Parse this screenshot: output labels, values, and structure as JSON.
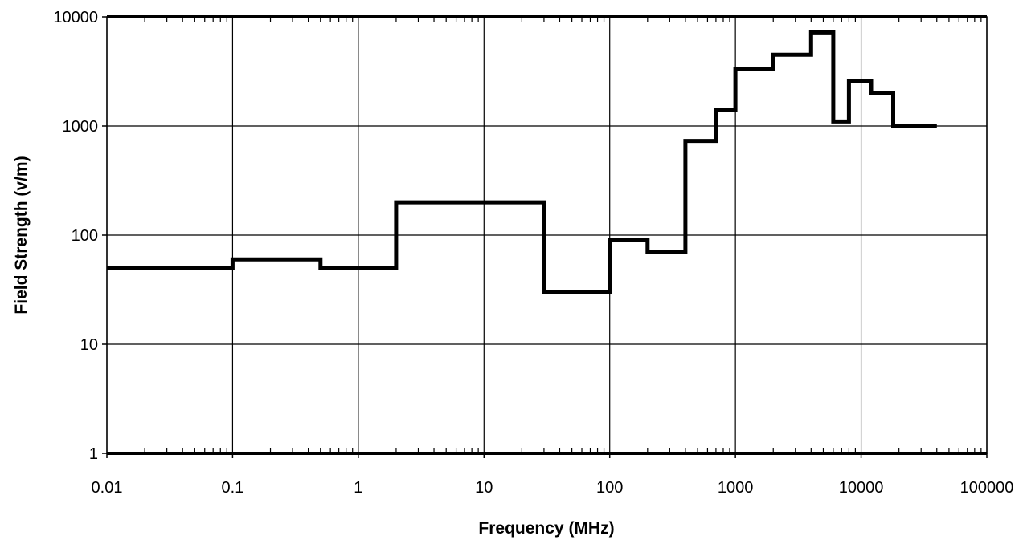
{
  "chart_data": {
    "type": "line",
    "step": true,
    "title": "",
    "xlabel": "Frequency (MHz)",
    "ylabel": "Field Strength (v/m)",
    "x_scale": "log",
    "y_scale": "log",
    "xlim": [
      0.01,
      100000
    ],
    "ylim": [
      1,
      10000
    ],
    "grid": true,
    "legend": "none",
    "x_tick_labels": [
      "0.01",
      "0.1",
      "1",
      "10",
      "100",
      "1000",
      "10000",
      "100000"
    ],
    "y_tick_labels": [
      "1",
      "10",
      "100",
      "1000",
      "10000"
    ],
    "x_ticks": [
      0.01,
      0.1,
      1,
      10,
      100,
      1000,
      10000,
      100000
    ],
    "y_ticks": [
      1,
      10,
      100,
      1000,
      10000
    ],
    "series": [
      {
        "color": "#000000",
        "segments": [
          {
            "x_start": 0.01,
            "x_end": 0.1,
            "y": 50
          },
          {
            "x_start": 0.1,
            "x_end": 0.5,
            "y": 60
          },
          {
            "x_start": 0.5,
            "x_end": 2,
            "y": 50
          },
          {
            "x_start": 2,
            "x_end": 30,
            "y": 200
          },
          {
            "x_start": 30,
            "x_end": 100,
            "y": 30
          },
          {
            "x_start": 100,
            "x_end": 200,
            "y": 90
          },
          {
            "x_start": 200,
            "x_end": 400,
            "y": 70
          },
          {
            "x_start": 400,
            "x_end": 700,
            "y": 730
          },
          {
            "x_start": 700,
            "x_end": 1000,
            "y": 1400
          },
          {
            "x_start": 1000,
            "x_end": 2000,
            "y": 3300
          },
          {
            "x_start": 2000,
            "x_end": 4000,
            "y": 4500
          },
          {
            "x_start": 4000,
            "x_end": 6000,
            "y": 7200
          },
          {
            "x_start": 6000,
            "x_end": 8000,
            "y": 1100
          },
          {
            "x_start": 8000,
            "x_end": 12000,
            "y": 2600
          },
          {
            "x_start": 12000,
            "x_end": 18000,
            "y": 2000
          },
          {
            "x_start": 18000,
            "x_end": 40000,
            "y": 1000
          }
        ]
      }
    ]
  }
}
